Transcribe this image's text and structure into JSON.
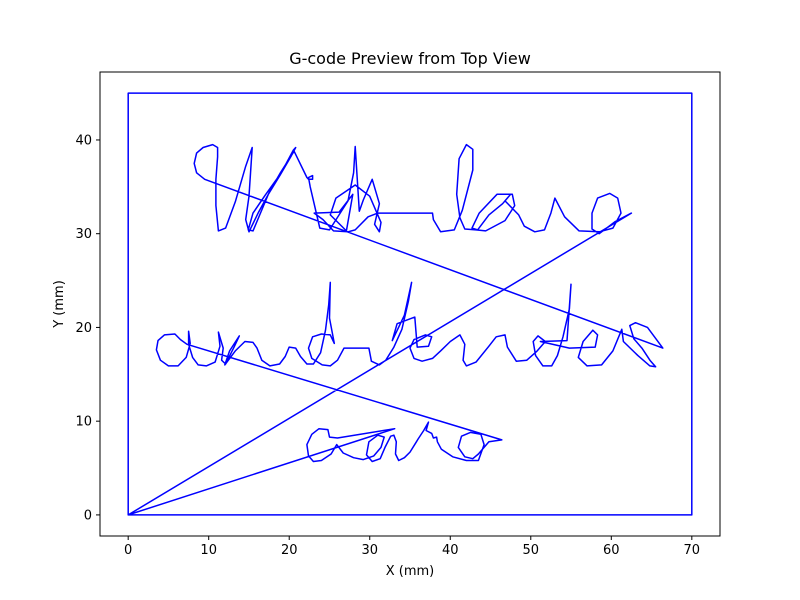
{
  "chart_data": {
    "type": "line",
    "title": "G-code Preview from Top View",
    "xlabel": "X (mm)",
    "ylabel": "Y (mm)",
    "xlim": [
      -3.5,
      73.5
    ],
    "ylim": [
      -2.25,
      47.25
    ],
    "xticks": [
      0,
      10,
      20,
      30,
      40,
      50,
      60,
      70
    ],
    "yticks": [
      0,
      10,
      20,
      30,
      40
    ],
    "grid": false,
    "legend": "none",
    "line_color": "#0000ff",
    "series": [
      {
        "values": [
          [
            0,
            0
          ],
          [
            0,
            45
          ],
          [
            70,
            45
          ],
          [
            70,
            0
          ],
          [
            0,
            0
          ],
          [
            62.5,
            32.2
          ],
          [
            60.5,
            31.3
          ],
          [
            58.5,
            30.0
          ],
          [
            57.6,
            30.5
          ],
          [
            57.6,
            32.2
          ],
          [
            58.3,
            33.8
          ],
          [
            59.8,
            34.3
          ],
          [
            60.8,
            33.8
          ],
          [
            61.2,
            32.2
          ],
          [
            60.2,
            30.6
          ],
          [
            58.5,
            30.2
          ],
          [
            56.0,
            30.3
          ],
          [
            54.2,
            31.8
          ],
          [
            53.0,
            33.8
          ],
          [
            52.5,
            32.2
          ],
          [
            51.7,
            30.4
          ],
          [
            50.5,
            30.2
          ],
          [
            49.2,
            30.8
          ],
          [
            48.5,
            32.0
          ],
          [
            46.8,
            33.5
          ],
          [
            47.5,
            34.2
          ],
          [
            46.5,
            33.2
          ],
          [
            44.8,
            32.0
          ],
          [
            43.4,
            30.4
          ],
          [
            42.7,
            30.6
          ],
          [
            43.6,
            32.2
          ],
          [
            45.8,
            34.2
          ],
          [
            47.7,
            34.2
          ],
          [
            48.0,
            33.0
          ],
          [
            46.8,
            31.4
          ],
          [
            44.4,
            30.3
          ],
          [
            43.2,
            30.4
          ],
          [
            41.8,
            30.5
          ],
          [
            41.2,
            31.7
          ],
          [
            40.8,
            34.2
          ],
          [
            41.1,
            38.0
          ],
          [
            42.0,
            39.5
          ],
          [
            42.8,
            39.0
          ],
          [
            42.8,
            36.8
          ],
          [
            41.5,
            32.5
          ],
          [
            40.5,
            30.4
          ],
          [
            38.8,
            30.2
          ],
          [
            37.9,
            31.5
          ],
          [
            37.8,
            32.2
          ],
          [
            33.8,
            32.2
          ],
          [
            31.0,
            32.2
          ],
          [
            29.8,
            31.8
          ],
          [
            28.2,
            30.4
          ],
          [
            27.3,
            30.2
          ],
          [
            25.5,
            30.3
          ],
          [
            24.2,
            31.5
          ],
          [
            23.1,
            32.2
          ],
          [
            26.2,
            32.3
          ],
          [
            27.9,
            34.2
          ],
          [
            27.1,
            30.3
          ],
          [
            25.1,
            32.0
          ],
          [
            25.8,
            33.8
          ],
          [
            28.2,
            35.2
          ],
          [
            30.0,
            34.0
          ],
          [
            31.4,
            31.2
          ],
          [
            31.2,
            30.2
          ],
          [
            30.6,
            31.0
          ],
          [
            31.2,
            33.2
          ],
          [
            30.3,
            35.8
          ],
          [
            29.2,
            33.6
          ],
          [
            28.7,
            32.4
          ],
          [
            28.2,
            39.3
          ],
          [
            28.0,
            36.5
          ],
          [
            27.3,
            33.5
          ],
          [
            25.0,
            30.4
          ],
          [
            23.8,
            30.6
          ],
          [
            22.6,
            35.0
          ],
          [
            22.4,
            36.0
          ],
          [
            22.9,
            36.2
          ],
          [
            22.9,
            35.8
          ],
          [
            22.4,
            35.8
          ],
          [
            22.2,
            36.0
          ],
          [
            20.6,
            38.8
          ],
          [
            18.9,
            36.5
          ],
          [
            17.5,
            34.4
          ],
          [
            15.5,
            30.3
          ],
          [
            14.9,
            30.4
          ],
          [
            15.5,
            32.2
          ],
          [
            17.0,
            34.1
          ],
          [
            19.0,
            36.5
          ],
          [
            20.5,
            38.9
          ],
          [
            20.8,
            39.2
          ],
          [
            20.2,
            38.2
          ],
          [
            18.9,
            36.3
          ],
          [
            17.4,
            34.2
          ],
          [
            16.2,
            32.3
          ],
          [
            15.0,
            30.2
          ],
          [
            14.6,
            31.5
          ],
          [
            15.0,
            34.0
          ],
          [
            15.2,
            36.6
          ],
          [
            15.4,
            39.2
          ],
          [
            14.6,
            37.2
          ],
          [
            13.3,
            33.4
          ],
          [
            12.1,
            30.6
          ],
          [
            11.2,
            30.3
          ],
          [
            10.9,
            33.0
          ],
          [
            10.9,
            35.8
          ],
          [
            11.1,
            38.2
          ],
          [
            11.1,
            39.2
          ],
          [
            10.5,
            39.5
          ],
          [
            9.3,
            39.2
          ],
          [
            8.5,
            38.6
          ],
          [
            8.2,
            37.5
          ],
          [
            8.5,
            36.5
          ],
          [
            9.5,
            35.8
          ],
          [
            66.4,
            17.8
          ],
          [
            64.5,
            20.0
          ],
          [
            63.0,
            20.5
          ],
          [
            62.3,
            20.2
          ],
          [
            62.8,
            18.8
          ],
          [
            63.8,
            17.8
          ],
          [
            64.8,
            16.5
          ],
          [
            65.5,
            15.8
          ],
          [
            64.8,
            15.9
          ],
          [
            63.3,
            17.0
          ],
          [
            61.5,
            18.5
          ],
          [
            61.3,
            19.8
          ],
          [
            60.2,
            17.5
          ],
          [
            58.8,
            16.0
          ],
          [
            57.0,
            15.9
          ],
          [
            55.9,
            16.8
          ],
          [
            56.5,
            18.5
          ],
          [
            57.7,
            19.7
          ],
          [
            58.3,
            19.2
          ],
          [
            58.0,
            17.9
          ],
          [
            54.8,
            17.8
          ],
          [
            51.2,
            18.5
          ],
          [
            54.5,
            18.6
          ],
          [
            55.0,
            24.6
          ],
          [
            54.8,
            22.0
          ],
          [
            54.0,
            19.0
          ],
          [
            53.3,
            17.0
          ],
          [
            52.6,
            15.9
          ],
          [
            51.5,
            15.9
          ],
          [
            50.6,
            17.0
          ],
          [
            50.3,
            18.5
          ],
          [
            50.9,
            19.1
          ],
          [
            51.8,
            18.5
          ],
          [
            50.8,
            17.5
          ],
          [
            49.5,
            16.5
          ],
          [
            48.2,
            16.4
          ],
          [
            47.1,
            17.9
          ],
          [
            46.8,
            19.2
          ],
          [
            45.7,
            19.0
          ],
          [
            44.8,
            18.0
          ],
          [
            43.2,
            16.3
          ],
          [
            42.0,
            15.9
          ],
          [
            41.6,
            16.5
          ],
          [
            41.8,
            18.2
          ],
          [
            41.2,
            19.2
          ],
          [
            40.0,
            18.5
          ],
          [
            38.8,
            17.5
          ],
          [
            37.8,
            16.7
          ],
          [
            36.5,
            16.4
          ],
          [
            35.5,
            16.7
          ],
          [
            35.0,
            17.8
          ],
          [
            35.5,
            18.7
          ],
          [
            36.9,
            19.2
          ],
          [
            37.7,
            19.0
          ],
          [
            37.3,
            18.0
          ],
          [
            35.9,
            17.9
          ],
          [
            35.6,
            21.1
          ],
          [
            33.4,
            20.4
          ],
          [
            32.8,
            18.6
          ],
          [
            34.3,
            21.3
          ],
          [
            35.2,
            24.8
          ],
          [
            34.8,
            22.8
          ],
          [
            34.0,
            19.8
          ],
          [
            33.0,
            17.9
          ],
          [
            32.0,
            16.5
          ],
          [
            31.2,
            16.0
          ],
          [
            30.2,
            16.4
          ],
          [
            29.9,
            17.8
          ],
          [
            27.5,
            17.8
          ],
          [
            26.8,
            17.8
          ],
          [
            26.0,
            16.5
          ],
          [
            25.1,
            15.9
          ],
          [
            24.1,
            16.0
          ],
          [
            22.8,
            16.7
          ],
          [
            22.4,
            17.8
          ],
          [
            22.9,
            19.0
          ],
          [
            24.0,
            19.3
          ],
          [
            25.1,
            19.2
          ],
          [
            25.6,
            18.3
          ],
          [
            25.0,
            21.0
          ],
          [
            25.1,
            24.8
          ],
          [
            24.9,
            22.4
          ],
          [
            24.5,
            19.7
          ],
          [
            23.9,
            17.3
          ],
          [
            23.0,
            16.1
          ],
          [
            22.2,
            16.1
          ],
          [
            21.4,
            16.9
          ],
          [
            20.8,
            17.8
          ],
          [
            20.0,
            17.9
          ],
          [
            19.5,
            16.9
          ],
          [
            18.8,
            16.1
          ],
          [
            17.6,
            15.9
          ],
          [
            16.6,
            16.5
          ],
          [
            16.0,
            17.8
          ],
          [
            15.5,
            18.4
          ],
          [
            14.5,
            18.5
          ],
          [
            13.3,
            17.5
          ],
          [
            12.0,
            16.0
          ],
          [
            12.6,
            17.5
          ],
          [
            13.8,
            19.1
          ],
          [
            13.2,
            18.0
          ],
          [
            12.1,
            16.1
          ],
          [
            11.6,
            16.5
          ],
          [
            11.8,
            17.8
          ],
          [
            11.2,
            19.5
          ],
          [
            11.4,
            18.0
          ],
          [
            10.8,
            16.3
          ],
          [
            9.7,
            15.9
          ],
          [
            8.7,
            16.0
          ],
          [
            8.0,
            16.8
          ],
          [
            7.5,
            18.2
          ],
          [
            7.5,
            19.6
          ],
          [
            7.7,
            18.3
          ],
          [
            7.2,
            16.8
          ],
          [
            6.2,
            15.9
          ],
          [
            5.0,
            15.9
          ],
          [
            4.0,
            16.5
          ],
          [
            3.5,
            17.6
          ],
          [
            3.7,
            18.6
          ],
          [
            4.5,
            19.2
          ],
          [
            5.8,
            19.3
          ],
          [
            6.5,
            18.7
          ],
          [
            7.3,
            18.2
          ],
          [
            46.4,
            8.0
          ],
          [
            44.8,
            7.8
          ],
          [
            43.5,
            6.5
          ],
          [
            42.8,
            6.0
          ],
          [
            41.8,
            6.2
          ],
          [
            41.0,
            7.2
          ],
          [
            41.4,
            8.4
          ],
          [
            42.5,
            8.8
          ],
          [
            43.8,
            8.6
          ],
          [
            44.2,
            7.5
          ],
          [
            43.5,
            5.8
          ],
          [
            42.0,
            5.8
          ],
          [
            40.3,
            6.2
          ],
          [
            38.9,
            7.0
          ],
          [
            38.4,
            7.8
          ],
          [
            38.3,
            8.3
          ],
          [
            37.9,
            8.2
          ],
          [
            37.7,
            8.7
          ],
          [
            37.0,
            9.0
          ],
          [
            37.3,
            9.9
          ],
          [
            36.7,
            9.0
          ],
          [
            36.0,
            8.1
          ],
          [
            35.8,
            7.8
          ],
          [
            35.0,
            6.7
          ],
          [
            34.3,
            6.1
          ],
          [
            33.6,
            5.8
          ],
          [
            33.2,
            6.5
          ],
          [
            33.3,
            7.8
          ],
          [
            33.0,
            8.5
          ],
          [
            32.6,
            8.4
          ],
          [
            31.9,
            7.2
          ],
          [
            31.3,
            6.0
          ],
          [
            30.3,
            5.7
          ],
          [
            29.6,
            6.4
          ],
          [
            29.9,
            7.8
          ],
          [
            31.0,
            8.5
          ],
          [
            31.8,
            8.3
          ],
          [
            31.4,
            7.2
          ],
          [
            30.5,
            6.3
          ],
          [
            29.2,
            5.9
          ],
          [
            28.0,
            6.1
          ],
          [
            26.7,
            6.6
          ],
          [
            25.9,
            7.5
          ],
          [
            25.2,
            6.5
          ],
          [
            24.0,
            5.8
          ],
          [
            23.0,
            5.7
          ],
          [
            22.4,
            6.3
          ],
          [
            22.2,
            7.5
          ],
          [
            22.8,
            8.6
          ],
          [
            23.7,
            9.2
          ],
          [
            24.8,
            9.1
          ],
          [
            25.0,
            8.3
          ],
          [
            26.0,
            8.2
          ],
          [
            33.1,
            9.2
          ],
          [
            0,
            0
          ]
        ]
      }
    ]
  }
}
